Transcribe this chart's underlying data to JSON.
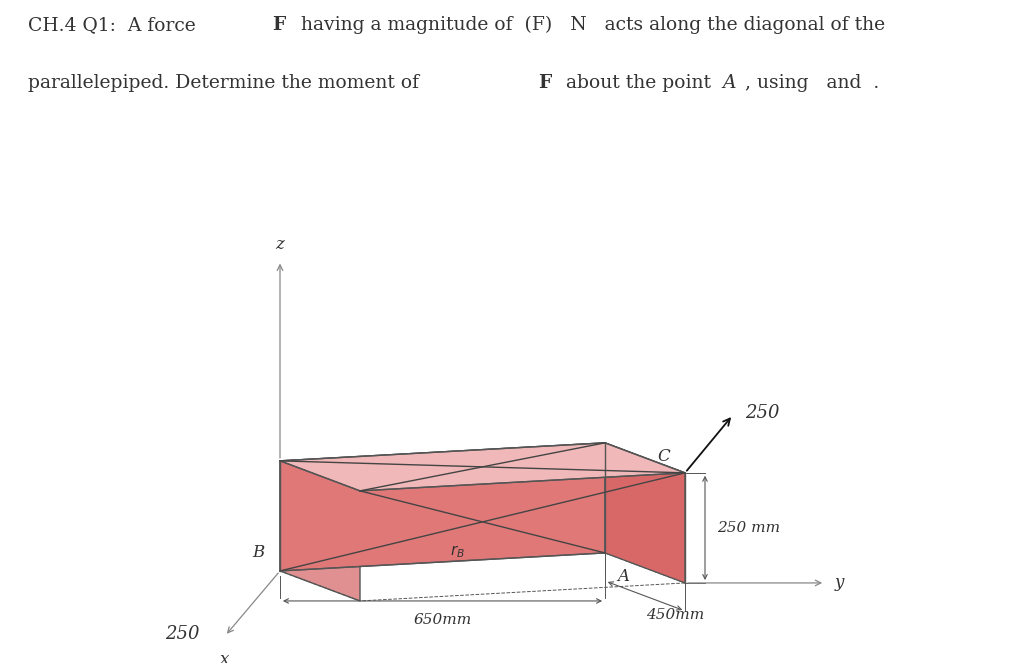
{
  "face_top_color": "#f0b8b8",
  "face_front_color": "#e07878",
  "face_right_color": "#d86868",
  "face_left_color": "#eeaaaa",
  "face_back_color": "#e09090",
  "edge_color": "#555555",
  "axis_color": "#888888",
  "diag_color": "#444444",
  "force_color": "#111111",
  "text_color": "#333333",
  "bg_color": "#ffffff",
  "label_A": "A",
  "label_B": "B",
  "label_C": "C",
  "label_rB": "$r_B$",
  "label_x": "x",
  "label_y": "y",
  "label_z": "z",
  "dim_650": "650mm",
  "dim_450": "450mm",
  "dim_250v": "250 mm",
  "dim_250force": "250",
  "dim_250x": "250",
  "fontsize_header": 13.5,
  "fontsize_labels": 12,
  "fontsize_dims": 11,
  "fontsize_250": 13
}
